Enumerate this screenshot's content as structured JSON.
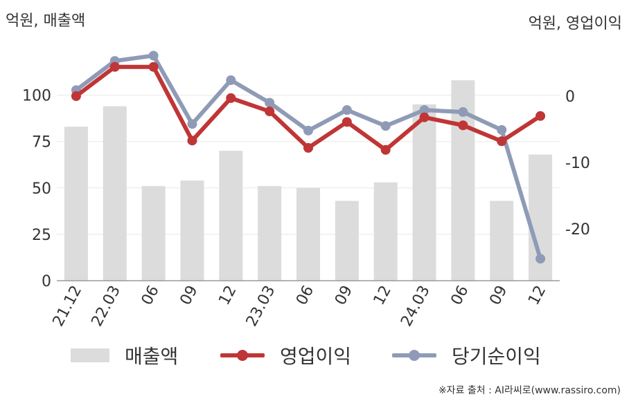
{
  "left_unit": "억원, 매출액",
  "right_unit": "억원, 영업이익",
  "source": "※자료 출처 : AI라씨로(www.rassiro.com)",
  "colors": {
    "bar": "#dcdcdc",
    "op_profit": "#c03535",
    "net_income": "#8f9bb6",
    "axis": "#9a9a9a",
    "grid": "#e8e8e8",
    "text": "#333333"
  },
  "chart_data": {
    "type": "bar",
    "categories": [
      "21.12",
      "22.03",
      "06",
      "09",
      "12",
      "23.03",
      "06",
      "09",
      "12",
      "24.03",
      "06",
      "09",
      "12"
    ],
    "left_axis": {
      "ticks": [
        0,
        25,
        50,
        75,
        100
      ],
      "ylim": [
        0,
        120
      ]
    },
    "right_axis": {
      "ticks": [
        0,
        -10,
        -20
      ],
      "ylim": [
        -28,
        10
      ]
    },
    "series": [
      {
        "name": "매출액",
        "type": "bar",
        "axis": "left",
        "values": [
          83,
          94,
          51,
          54,
          70,
          51,
          50,
          43,
          53,
          95,
          108,
          43,
          68
        ]
      },
      {
        "name": "영업이익",
        "type": "line",
        "axis": "right",
        "values": [
          0,
          4.4,
          4.4,
          -6.7,
          -0.3,
          -2.3,
          -7.8,
          -3.9,
          -8.1,
          -3.2,
          -4.4,
          -6.8,
          -3.0
        ]
      },
      {
        "name": "당기순이익",
        "type": "line",
        "axis": "right",
        "values": [
          0.9,
          5.3,
          6.1,
          -4.2,
          2.4,
          -1.0,
          -5.2,
          -2.1,
          -4.5,
          -2.1,
          -2.4,
          -5.1,
          -24.5
        ]
      }
    ],
    "grid": true,
    "legend": "bottom"
  }
}
